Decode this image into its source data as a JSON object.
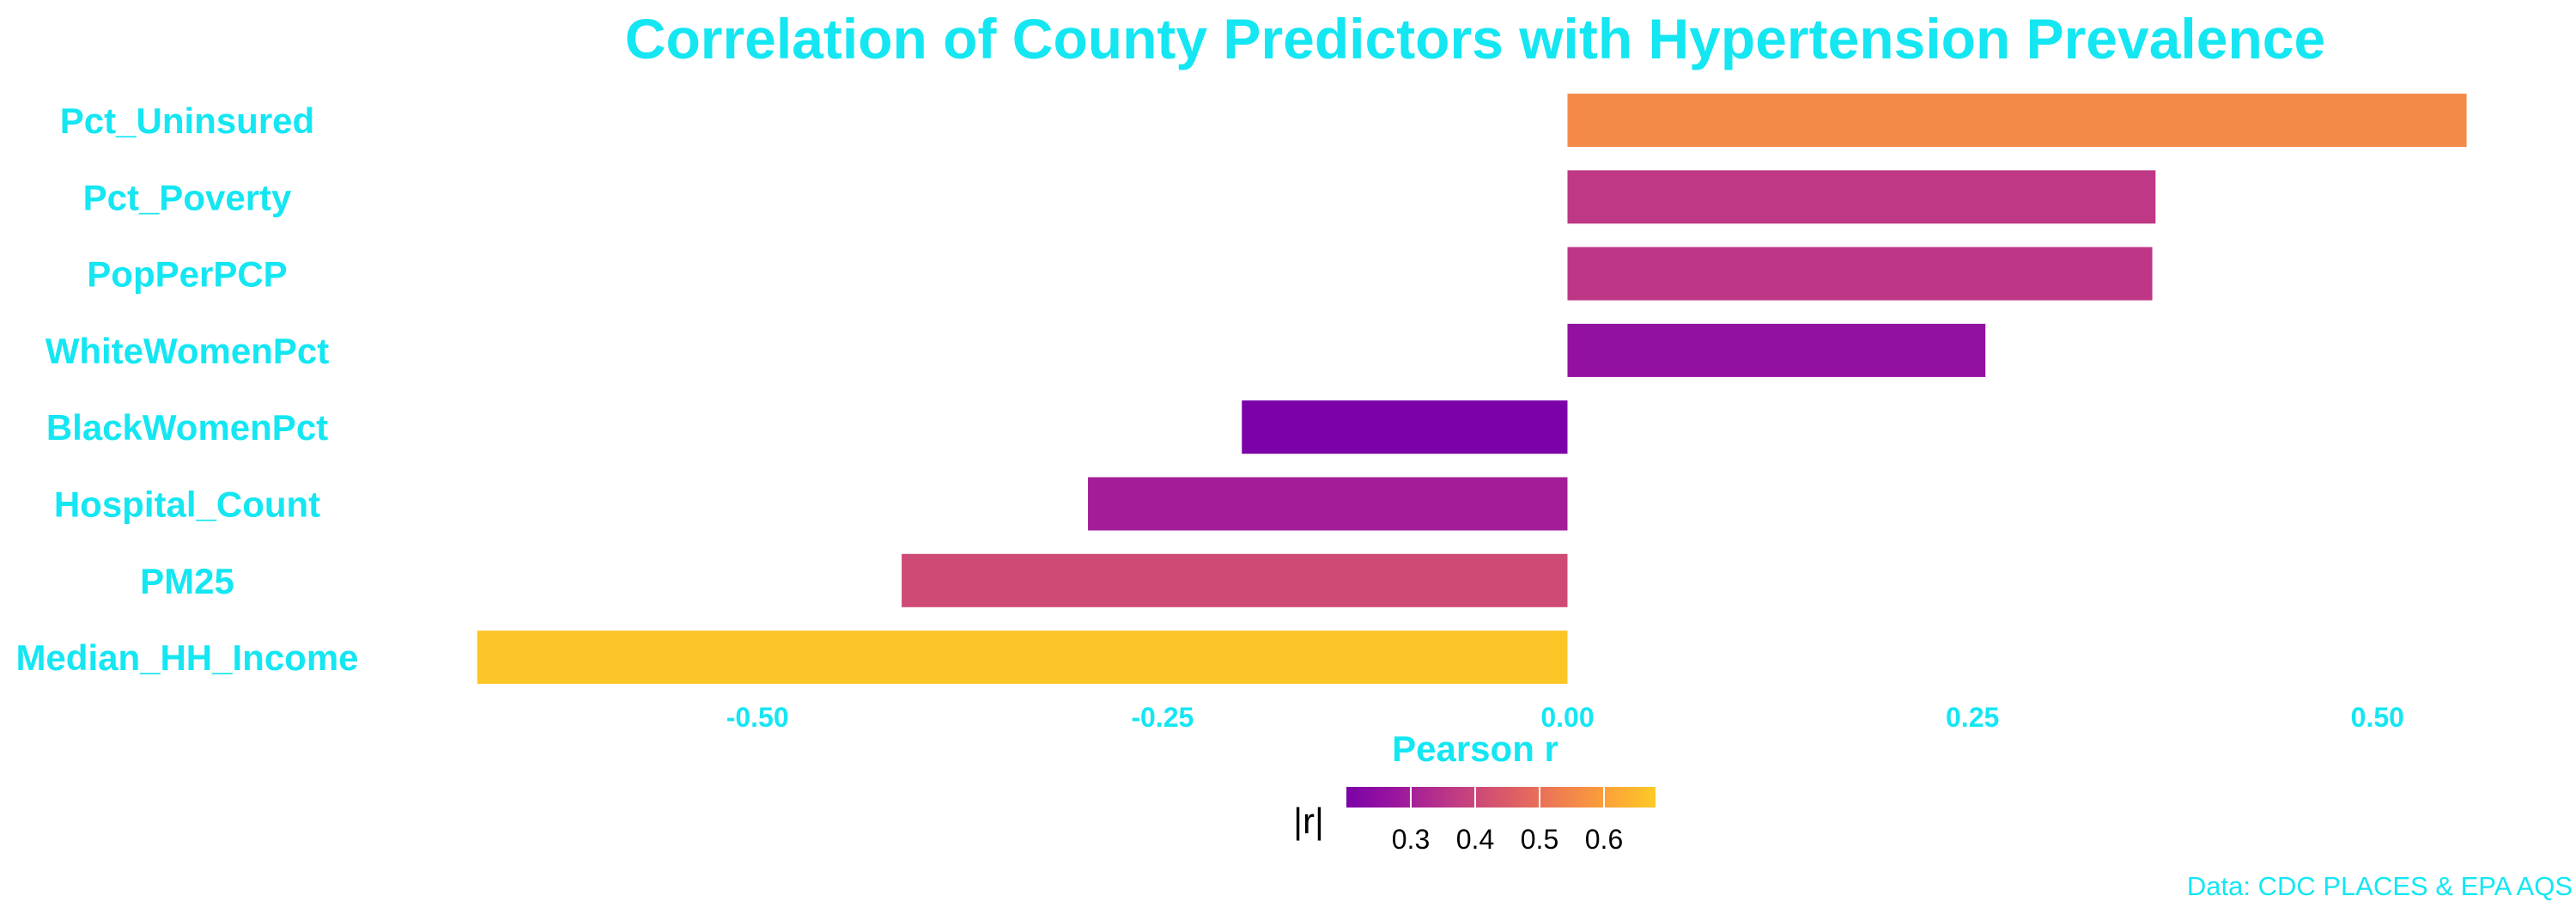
{
  "chart_data": {
    "type": "bar",
    "orientation": "horizontal",
    "title": "Correlation of County Predictors with Hypertension Prevalence",
    "xlabel": "Pearson r",
    "ylabel": "",
    "categories": [
      "Pct_Uninsured",
      "Pct_Poverty",
      "PopPerPCP",
      "WhiteWomenPct",
      "BlackWomenPct",
      "Hospital_Count",
      "PM25",
      "Median_HH_Income"
    ],
    "values": [
      0.555,
      0.363,
      0.361,
      0.258,
      -0.201,
      -0.296,
      -0.411,
      -0.673
    ],
    "xlim": [
      -0.675,
      0.56
    ],
    "xticks": [
      -0.5,
      -0.25,
      0.0,
      0.25,
      0.5
    ],
    "xtick_labels": [
      "-0.50",
      "-0.25",
      "0.00",
      "0.25",
      "0.50"
    ],
    "grid": false,
    "fill_variable": "|r|",
    "legend": {
      "title": "|r|",
      "placement": "bottom",
      "range": [
        0.2,
        0.68
      ],
      "ticks": [
        0.3,
        0.4,
        0.5,
        0.6
      ],
      "tick_labels": [
        "0.3",
        "0.4",
        "0.5",
        "0.6"
      ],
      "colormap": [
        "#7b02a8",
        "#9c179e",
        "#bd3786",
        "#d8576b",
        "#ed7953",
        "#fb9f3a",
        "#fdca26"
      ]
    },
    "caption": "Data: CDC PLACES & EPA AQS"
  }
}
